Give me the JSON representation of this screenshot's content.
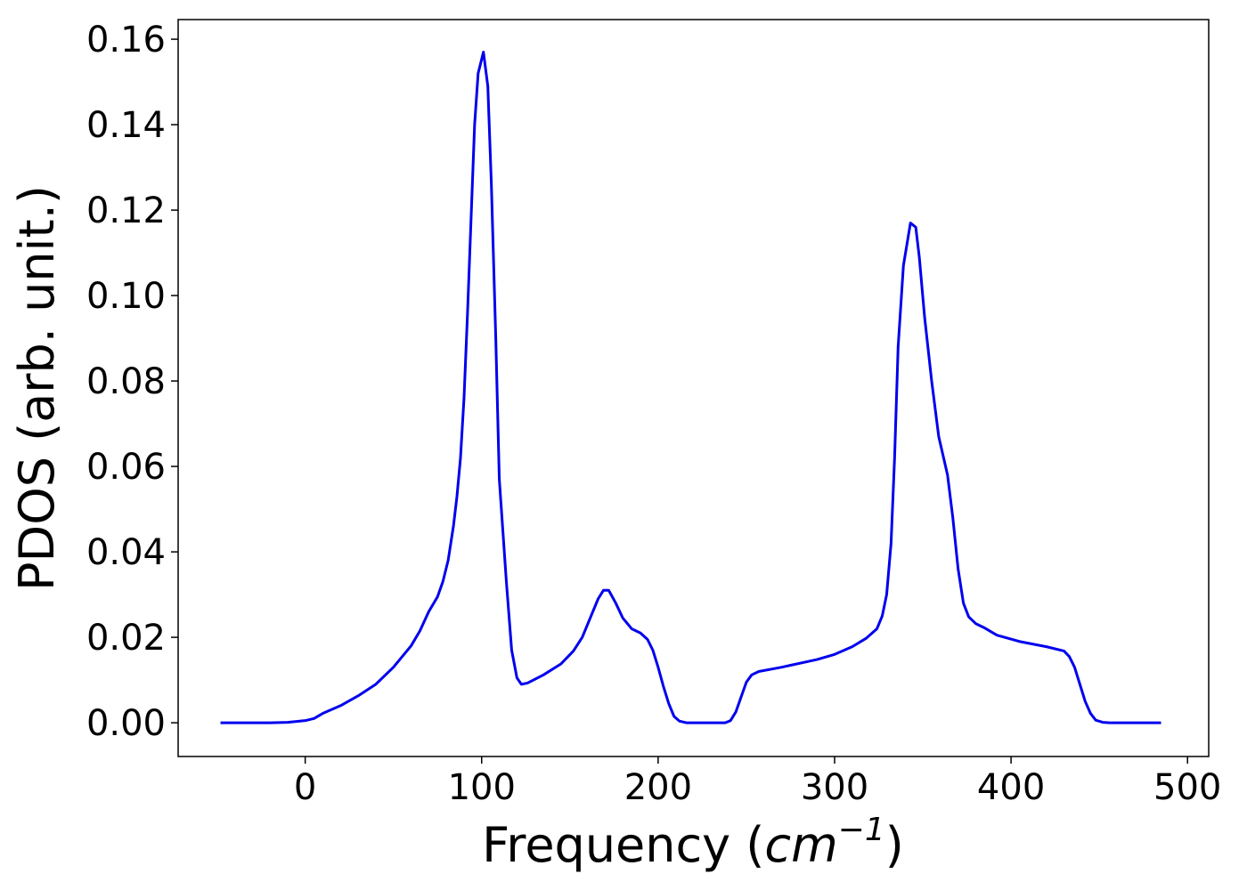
{
  "chart_data": {
    "type": "line",
    "ylabel": "PDOS (arb. unit.)",
    "xlabel_prefix": "Frequency (",
    "xlabel_unit": "cm",
    "xlabel_exponent": "−1",
    "xlabel_suffix": ")",
    "xlim": [
      -72,
      512
    ],
    "ylim": [
      -0.0079,
      0.1646
    ],
    "xticks": [
      0,
      100,
      200,
      300,
      400,
      500
    ],
    "yticks": [
      {
        "value": 0,
        "label": "0.00"
      },
      0.02,
      0.04,
      0.06,
      0.08,
      {
        "value": 0.1,
        "label": "0.10"
      },
      0.12,
      0.14,
      0.16
    ],
    "series": [
      {
        "color": "#0000ee",
        "x": [
          -48,
          -20,
          -10,
          0,
          5,
          10,
          20,
          30,
          40,
          50,
          60,
          65,
          70,
          75,
          78,
          81,
          84,
          86,
          88,
          90,
          92,
          94,
          96,
          98,
          101,
          103.5,
          105.5,
          108,
          110,
          114,
          117,
          120,
          122.5,
          126,
          135,
          145,
          152,
          157,
          162,
          166,
          169,
          172,
          176,
          180,
          185,
          190,
          194,
          197,
          200,
          203,
          206,
          209,
          212,
          216,
          238,
          241,
          244,
          247,
          250,
          253,
          257,
          270,
          290,
          300,
          310,
          318,
          324,
          327,
          329.5,
          332,
          334,
          336,
          339,
          343,
          346,
          348,
          351,
          355,
          359,
          364,
          367,
          370,
          373,
          376,
          380,
          385,
          392,
          405,
          420,
          430,
          433,
          436,
          439,
          442,
          445,
          448,
          452,
          456,
          485
        ],
        "values": [
          0,
          0,
          0.0001,
          0.0005,
          0.001,
          0.0022,
          0.004,
          0.0063,
          0.009,
          0.013,
          0.018,
          0.0215,
          0.026,
          0.0295,
          0.033,
          0.038,
          0.046,
          0.053,
          0.062,
          0.076,
          0.096,
          0.118,
          0.14,
          0.152,
          0.157,
          0.149,
          0.126,
          0.09,
          0.057,
          0.033,
          0.017,
          0.0105,
          0.009,
          0.0093,
          0.0112,
          0.0138,
          0.0168,
          0.02,
          0.025,
          0.029,
          0.031,
          0.031,
          0.028,
          0.0245,
          0.022,
          0.021,
          0.0195,
          0.017,
          0.013,
          0.0085,
          0.0045,
          0.0015,
          0.0004,
          0,
          0,
          0.0005,
          0.0025,
          0.006,
          0.0095,
          0.0112,
          0.012,
          0.013,
          0.0148,
          0.016,
          0.0178,
          0.0198,
          0.022,
          0.025,
          0.03,
          0.042,
          0.062,
          0.088,
          0.107,
          0.117,
          0.116,
          0.109,
          0.095,
          0.08,
          0.067,
          0.058,
          0.048,
          0.036,
          0.028,
          0.0248,
          0.0232,
          0.0222,
          0.0205,
          0.019,
          0.0178,
          0.0168,
          0.0155,
          0.013,
          0.009,
          0.005,
          0.0022,
          0.0006,
          0.0001,
          0,
          0
        ]
      }
    ]
  }
}
